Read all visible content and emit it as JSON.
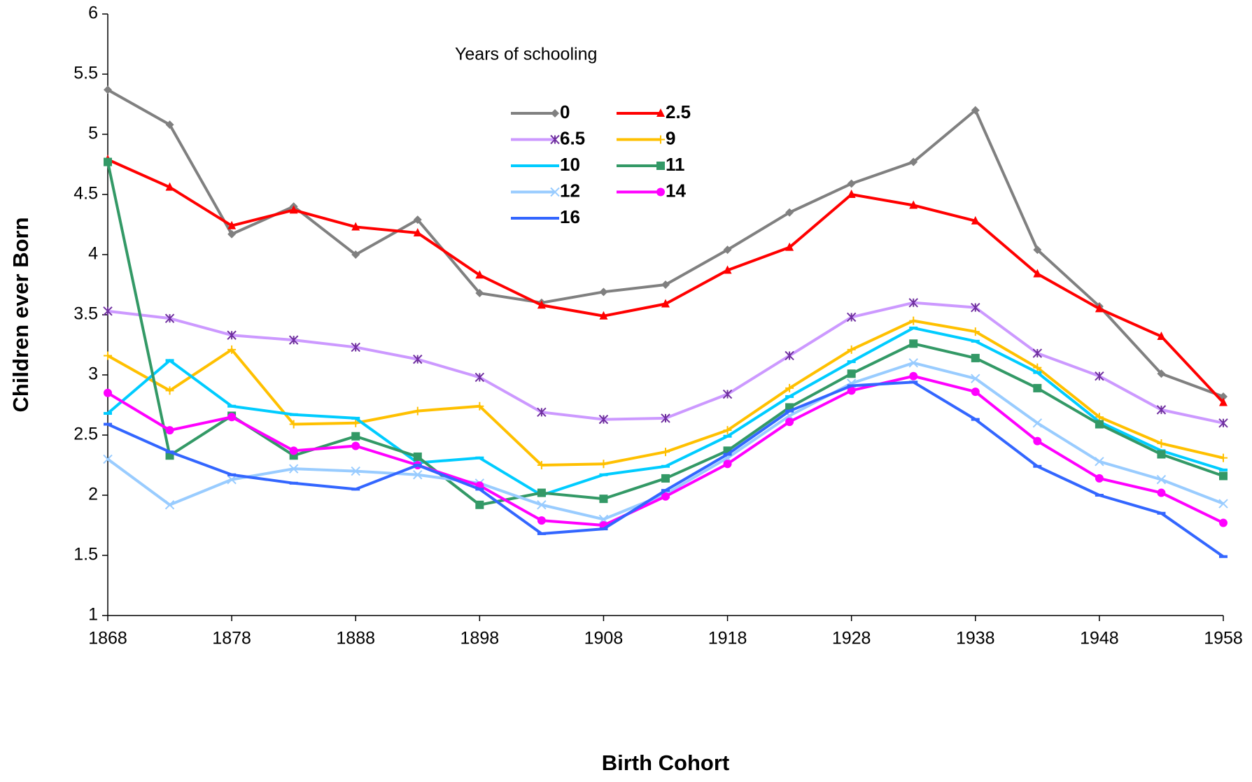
{
  "chart_data": {
    "type": "line",
    "x_label": "Birth Cohort",
    "y_label": "Children ever Born",
    "legend_title": "Years of schooling",
    "x": [
      1868,
      1873,
      1878,
      1883,
      1888,
      1893,
      1898,
      1903,
      1908,
      1913,
      1918,
      1923,
      1928,
      1933,
      1938,
      1943,
      1948,
      1953,
      1958
    ],
    "xlim": [
      1868,
      1958
    ],
    "xticks": [
      1868,
      1878,
      1888,
      1898,
      1908,
      1918,
      1928,
      1938,
      1948,
      1958
    ],
    "ylim": [
      1,
      6
    ],
    "yticks": [
      1,
      1.5,
      2,
      2.5,
      3,
      3.5,
      4,
      4.5,
      5,
      5.5,
      6
    ],
    "series": [
      {
        "name": "0",
        "color": "#808080",
        "marker": "diamond",
        "values": [
          5.37,
          5.08,
          4.17,
          4.4,
          4.0,
          4.29,
          3.68,
          3.6,
          3.69,
          3.75,
          4.04,
          4.35,
          4.59,
          4.77,
          5.2,
          4.04,
          3.57,
          3.01,
          2.82
        ]
      },
      {
        "name": "2.5",
        "color": "#ff0000",
        "marker": "triangle",
        "values": [
          4.79,
          4.56,
          4.24,
          4.37,
          4.23,
          4.18,
          3.83,
          3.58,
          3.49,
          3.59,
          3.87,
          4.06,
          4.5,
          4.41,
          4.28,
          3.84,
          3.55,
          3.32,
          2.77
        ]
      },
      {
        "name": "6.5",
        "color": "#cc99ff",
        "marker": "star",
        "values": [
          3.53,
          3.47,
          3.33,
          3.29,
          3.23,
          3.13,
          2.98,
          2.69,
          2.63,
          2.64,
          2.84,
          3.16,
          3.48,
          3.6,
          3.56,
          3.18,
          2.99,
          2.71,
          2.6
        ]
      },
      {
        "name": "9",
        "color": "#ffc000",
        "marker": "plus",
        "values": [
          3.16,
          2.87,
          3.21,
          2.59,
          2.6,
          2.7,
          2.74,
          2.25,
          2.26,
          2.36,
          2.54,
          2.89,
          3.21,
          3.45,
          3.36,
          3.06,
          2.65,
          2.43,
          2.31
        ]
      },
      {
        "name": "10",
        "color": "#00ccff",
        "marker": "dash",
        "values": [
          2.68,
          3.12,
          2.74,
          2.67,
          2.64,
          2.27,
          2.31,
          2.0,
          2.17,
          2.24,
          2.49,
          2.82,
          3.11,
          3.39,
          3.28,
          3.02,
          2.61,
          2.37,
          2.21
        ]
      },
      {
        "name": "11",
        "color": "#339966",
        "marker": "square",
        "values": [
          4.77,
          2.33,
          2.66,
          2.33,
          2.49,
          2.32,
          1.92,
          2.02,
          1.97,
          2.14,
          2.37,
          2.73,
          3.01,
          3.26,
          3.14,
          2.89,
          2.59,
          2.34,
          2.16
        ]
      },
      {
        "name": "12",
        "color": "#99ccff",
        "marker": "cross",
        "values": [
          2.3,
          1.92,
          2.13,
          2.22,
          2.2,
          2.17,
          2.1,
          1.92,
          1.8,
          2.01,
          2.31,
          2.66,
          2.93,
          3.1,
          2.97,
          2.6,
          2.28,
          2.13,
          1.93
        ]
      },
      {
        "name": "14",
        "color": "#ff00ff",
        "marker": "circle",
        "values": [
          2.85,
          2.54,
          2.65,
          2.37,
          2.41,
          2.25,
          2.08,
          1.79,
          1.75,
          1.99,
          2.26,
          2.61,
          2.87,
          2.99,
          2.86,
          2.45,
          2.14,
          2.02,
          1.77
        ]
      },
      {
        "name": "16",
        "color": "#3366ff",
        "marker": "dash",
        "values": [
          2.59,
          2.36,
          2.17,
          2.1,
          2.05,
          2.25,
          2.05,
          1.68,
          1.72,
          2.04,
          2.34,
          2.7,
          2.91,
          2.94,
          2.63,
          2.24,
          2.0,
          1.85,
          1.49
        ]
      }
    ]
  }
}
